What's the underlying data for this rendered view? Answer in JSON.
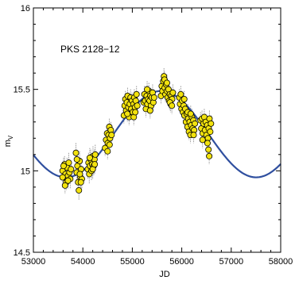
{
  "chart_data": {
    "type": "scatter",
    "title": "",
    "annotation": "PKS 2128−12",
    "xlabel": "JD",
    "ylabel": {
      "main": "m",
      "sub": "V"
    },
    "xlim": [
      53000,
      58000
    ],
    "ylim": [
      14.5,
      16
    ],
    "xticks": [
      53000,
      54000,
      55000,
      56000,
      57000,
      58000
    ],
    "xtick_labels": [
      "53000",
      "54000",
      "55000",
      "56000",
      "57000",
      "58000"
    ],
    "yticks": [
      14.5,
      15,
      15.5,
      16
    ],
    "ytick_labels": [
      "14.5",
      "15",
      "15.5",
      "16"
    ],
    "grid": false,
    "legend": "none",
    "colors": {
      "marker_fill": "#f2e20e",
      "marker_edge": "#000000",
      "error_bar": "#9a9a9a",
      "model_curve": "#2f4f9f"
    },
    "series": [
      {
        "type": "scatter_with_error",
        "points": [
          [
            53590,
            15.0,
            0.05
          ],
          [
            53610,
            14.96,
            0.06
          ],
          [
            53630,
            15.04,
            0.05
          ],
          [
            53650,
            14.98,
            0.06
          ],
          [
            53665,
            14.93,
            0.05
          ],
          [
            53680,
            15.02,
            0.06
          ],
          [
            53700,
            14.97,
            0.05
          ],
          [
            53715,
            15.05,
            0.06
          ],
          [
            53730,
            14.99,
            0.05
          ],
          [
            53745,
            14.95,
            0.06
          ],
          [
            53760,
            15.01,
            0.05
          ],
          [
            53610,
            15.03,
            0.05
          ],
          [
            53640,
            14.91,
            0.05
          ],
          [
            53700,
            14.94,
            0.05
          ],
          [
            53590,
            14.96,
            0.05
          ],
          [
            53860,
            15.11,
            0.06
          ],
          [
            53875,
            14.99,
            0.06
          ],
          [
            53890,
            15.03,
            0.06
          ],
          [
            53905,
            14.93,
            0.06
          ],
          [
            53920,
            14.88,
            0.06
          ],
          [
            53935,
            15.06,
            0.06
          ],
          [
            53950,
            14.96,
            0.06
          ],
          [
            53965,
            15.01,
            0.06
          ],
          [
            53980,
            14.95,
            0.06
          ],
          [
            53880,
            15.07,
            0.06
          ],
          [
            53940,
            14.98,
            0.06
          ],
          [
            53960,
            14.93,
            0.06
          ],
          [
            54100,
            15.01,
            0.06
          ],
          [
            54115,
            15.05,
            0.06
          ],
          [
            54130,
            14.98,
            0.06
          ],
          [
            54145,
            15.03,
            0.06
          ],
          [
            54160,
            15.07,
            0.06
          ],
          [
            54175,
            15.0,
            0.06
          ],
          [
            54190,
            15.04,
            0.06
          ],
          [
            54205,
            15.09,
            0.06
          ],
          [
            54220,
            15.03,
            0.06
          ],
          [
            54235,
            15.07,
            0.06
          ],
          [
            54250,
            15.1,
            0.06
          ],
          [
            54140,
            15.08,
            0.06
          ],
          [
            54200,
            15.01,
            0.06
          ],
          [
            54240,
            15.04,
            0.06
          ],
          [
            54450,
            15.14,
            0.05
          ],
          [
            54470,
            15.19,
            0.05
          ],
          [
            54490,
            15.23,
            0.05
          ],
          [
            54505,
            15.17,
            0.05
          ],
          [
            54520,
            15.22,
            0.05
          ],
          [
            54535,
            15.27,
            0.05
          ],
          [
            54550,
            15.2,
            0.05
          ],
          [
            54565,
            15.25,
            0.05
          ],
          [
            54580,
            15.22,
            0.05
          ],
          [
            54500,
            15.12,
            0.05
          ],
          [
            54540,
            15.16,
            0.05
          ],
          [
            54830,
            15.34,
            0.05
          ],
          [
            54845,
            15.4,
            0.05
          ],
          [
            54860,
            15.44,
            0.05
          ],
          [
            54875,
            15.37,
            0.05
          ],
          [
            54890,
            15.42,
            0.05
          ],
          [
            54905,
            15.46,
            0.05
          ],
          [
            54920,
            15.39,
            0.05
          ],
          [
            54935,
            15.33,
            0.05
          ],
          [
            54950,
            15.41,
            0.05
          ],
          [
            54965,
            15.45,
            0.05
          ],
          [
            54980,
            15.38,
            0.05
          ],
          [
            54995,
            15.43,
            0.05
          ],
          [
            55010,
            15.36,
            0.05
          ],
          [
            55025,
            15.41,
            0.05
          ],
          [
            55040,
            15.45,
            0.05
          ],
          [
            55055,
            15.39,
            0.05
          ],
          [
            55070,
            15.43,
            0.05
          ],
          [
            55085,
            15.47,
            0.05
          ],
          [
            55100,
            15.4,
            0.05
          ],
          [
            55030,
            15.33,
            0.05
          ],
          [
            54900,
            15.35,
            0.05
          ],
          [
            55060,
            15.36,
            0.05
          ],
          [
            55230,
            15.42,
            0.05
          ],
          [
            55245,
            15.47,
            0.05
          ],
          [
            55260,
            15.43,
            0.05
          ],
          [
            55275,
            15.38,
            0.05
          ],
          [
            55290,
            15.46,
            0.05
          ],
          [
            55305,
            15.41,
            0.05
          ],
          [
            55320,
            15.44,
            0.05
          ],
          [
            55335,
            15.49,
            0.05
          ],
          [
            55350,
            15.43,
            0.05
          ],
          [
            55365,
            15.46,
            0.05
          ],
          [
            55380,
            15.4,
            0.05
          ],
          [
            55395,
            15.45,
            0.05
          ],
          [
            55410,
            15.48,
            0.05
          ],
          [
            55425,
            15.42,
            0.05
          ],
          [
            55440,
            15.45,
            0.05
          ],
          [
            55300,
            15.5,
            0.05
          ],
          [
            55360,
            15.37,
            0.05
          ],
          [
            55580,
            15.46,
            0.05
          ],
          [
            55595,
            15.52,
            0.05
          ],
          [
            55610,
            15.49,
            0.05
          ],
          [
            55625,
            15.55,
            0.05
          ],
          [
            55640,
            15.58,
            0.05
          ],
          [
            55655,
            15.51,
            0.05
          ],
          [
            55670,
            15.47,
            0.05
          ],
          [
            55685,
            15.53,
            0.05
          ],
          [
            55700,
            15.49,
            0.05
          ],
          [
            55715,
            15.45,
            0.05
          ],
          [
            55730,
            15.5,
            0.05
          ],
          [
            55745,
            15.43,
            0.05
          ],
          [
            55760,
            15.47,
            0.05
          ],
          [
            55775,
            15.41,
            0.05
          ],
          [
            55790,
            15.46,
            0.05
          ],
          [
            55805,
            15.44,
            0.05
          ],
          [
            55820,
            15.48,
            0.05
          ],
          [
            55650,
            15.56,
            0.05
          ],
          [
            55700,
            15.54,
            0.05
          ],
          [
            55760,
            15.42,
            0.05
          ],
          [
            55800,
            15.4,
            0.05
          ],
          [
            55950,
            15.45,
            0.05
          ],
          [
            55965,
            15.41,
            0.05
          ],
          [
            55980,
            15.47,
            0.05
          ],
          [
            55995,
            15.38,
            0.05
          ],
          [
            56010,
            15.43,
            0.05
          ],
          [
            56025,
            15.36,
            0.05
          ],
          [
            56040,
            15.4,
            0.05
          ],
          [
            56055,
            15.34,
            0.05
          ],
          [
            56070,
            15.38,
            0.05
          ],
          [
            56085,
            15.3,
            0.05
          ],
          [
            56100,
            15.35,
            0.05
          ],
          [
            56115,
            15.27,
            0.05
          ],
          [
            56130,
            15.32,
            0.05
          ],
          [
            56145,
            15.24,
            0.05
          ],
          [
            56160,
            15.3,
            0.05
          ],
          [
            56175,
            15.22,
            0.05
          ],
          [
            56190,
            15.28,
            0.05
          ],
          [
            56205,
            15.33,
            0.05
          ],
          [
            56220,
            15.26,
            0.05
          ],
          [
            56235,
            15.31,
            0.05
          ],
          [
            56250,
            15.25,
            0.05
          ],
          [
            56265,
            15.29,
            0.05
          ],
          [
            56050,
            15.44,
            0.05
          ],
          [
            56120,
            15.36,
            0.05
          ],
          [
            56180,
            15.35,
            0.05
          ],
          [
            56240,
            15.22,
            0.05
          ],
          [
            56380,
            15.31,
            0.05
          ],
          [
            56395,
            15.26,
            0.05
          ],
          [
            56410,
            15.32,
            0.05
          ],
          [
            56425,
            15.23,
            0.05
          ],
          [
            56440,
            15.29,
            0.05
          ],
          [
            56455,
            15.33,
            0.05
          ],
          [
            56470,
            15.25,
            0.05
          ],
          [
            56485,
            15.3,
            0.05
          ],
          [
            56500,
            15.22,
            0.05
          ],
          [
            56515,
            15.28,
            0.05
          ],
          [
            56530,
            15.2,
            0.05
          ],
          [
            56545,
            15.26,
            0.05
          ],
          [
            56560,
            15.32,
            0.05
          ],
          [
            56575,
            15.24,
            0.05
          ],
          [
            56590,
            15.29,
            0.05
          ],
          [
            56520,
            15.17,
            0.05
          ],
          [
            56540,
            15.13,
            0.05
          ],
          [
            56555,
            15.09,
            0.05
          ],
          [
            56420,
            15.19,
            0.05
          ]
        ]
      },
      {
        "type": "line",
        "model": {
          "mean": 15.225,
          "amplitude": 0.265,
          "period_days": 3850,
          "peak_jd": 55580
        }
      }
    ]
  }
}
